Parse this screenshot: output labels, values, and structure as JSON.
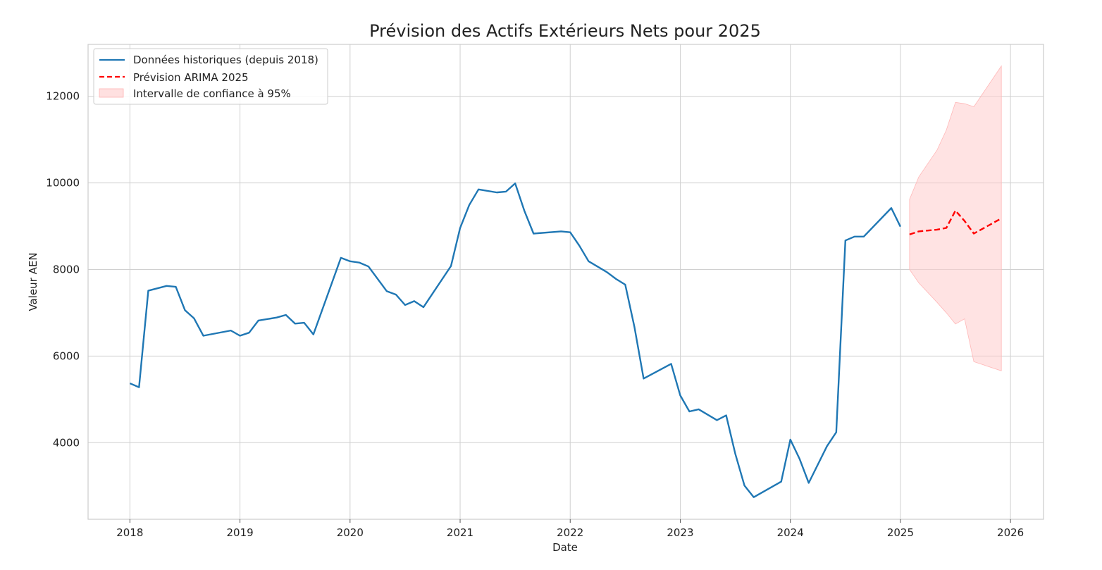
{
  "chart_data": {
    "type": "line",
    "title": "Prévision des Actifs Extérieurs Nets pour 2025",
    "xlabel": "Date",
    "ylabel": "Valeur AEN",
    "xlim": [
      2017.62,
      2026.3
    ],
    "ylim": [
      2230,
      13200
    ],
    "x_ticks": [
      2018,
      2019,
      2020,
      2021,
      2022,
      2023,
      2024,
      2025,
      2026
    ],
    "y_ticks": [
      4000,
      6000,
      8000,
      10000,
      12000
    ],
    "grid": true,
    "legend_position": "top-left",
    "legend": [
      {
        "key": "historical",
        "label": "Données historiques (depuis 2018)",
        "style": "solid",
        "color": "#1f77b4"
      },
      {
        "key": "forecast",
        "label": "Prévision ARIMA 2025",
        "style": "dashed",
        "color": "#ff0000"
      },
      {
        "key": "ci",
        "label": "Intervalle de confiance à 95%",
        "style": "fill",
        "color": "#ffcccc"
      }
    ],
    "series": [
      {
        "name": "Données historiques (depuis 2018)",
        "color": "#1f77b4",
        "x": [
          2018.0,
          2018.083,
          2018.167,
          2018.333,
          2018.417,
          2018.5,
          2018.583,
          2018.667,
          2018.917,
          2019.0,
          2019.083,
          2019.167,
          2019.333,
          2019.417,
          2019.5,
          2019.583,
          2019.667,
          2019.917,
          2020.0,
          2020.083,
          2020.167,
          2020.333,
          2020.417,
          2020.5,
          2020.583,
          2020.667,
          2020.917,
          2021.0,
          2021.083,
          2021.167,
          2021.333,
          2021.417,
          2021.5,
          2021.583,
          2021.667,
          2021.917,
          2022.0,
          2022.083,
          2022.167,
          2022.333,
          2022.417,
          2022.5,
          2022.583,
          2022.667,
          2022.917,
          2023.0,
          2023.083,
          2023.167,
          2023.333,
          2023.417,
          2023.5,
          2023.583,
          2023.667,
          2023.917,
          2024.0,
          2024.083,
          2024.167,
          2024.333,
          2024.417,
          2024.5,
          2024.583,
          2024.667,
          2024.917,
          2025.0
        ],
        "values": [
          5370,
          5280,
          7510,
          7620,
          7600,
          7060,
          6870,
          6470,
          6590,
          6470,
          6540,
          6820,
          6890,
          6950,
          6750,
          6770,
          6500,
          8270,
          8190,
          8160,
          8070,
          7500,
          7420,
          7180,
          7270,
          7130,
          8080,
          8960,
          9490,
          9850,
          9780,
          9800,
          9990,
          9360,
          8830,
          8880,
          8860,
          8550,
          8190,
          7940,
          7780,
          7650,
          6680,
          5480,
          5820,
          5090,
          4720,
          4770,
          4520,
          4630,
          3740,
          3010,
          2740,
          3100,
          4070,
          3630,
          3070,
          3920,
          4240,
          8670,
          8760,
          8760,
          9420,
          8990
        ]
      },
      {
        "name": "Prévision ARIMA 2025",
        "color": "#ff0000",
        "x": [
          2025.083,
          2025.167,
          2025.333,
          2025.417,
          2025.5,
          2025.583,
          2025.667,
          2025.917
        ],
        "values": [
          8810,
          8880,
          8920,
          8960,
          9360,
          9120,
          8830,
          9180
        ]
      },
      {
        "name": "Intervalle de confiance à 95%",
        "color": "#ffcccc",
        "x": [
          2025.083,
          2025.167,
          2025.333,
          2025.417,
          2025.5,
          2025.583,
          2025.667,
          2025.917
        ],
        "lower": [
          8000,
          7690,
          7240,
          7000,
          6740,
          6860,
          5870,
          5660
        ],
        "upper": [
          9620,
          10140,
          10760,
          11220,
          11860,
          11830,
          11760,
          12700
        ]
      }
    ]
  }
}
